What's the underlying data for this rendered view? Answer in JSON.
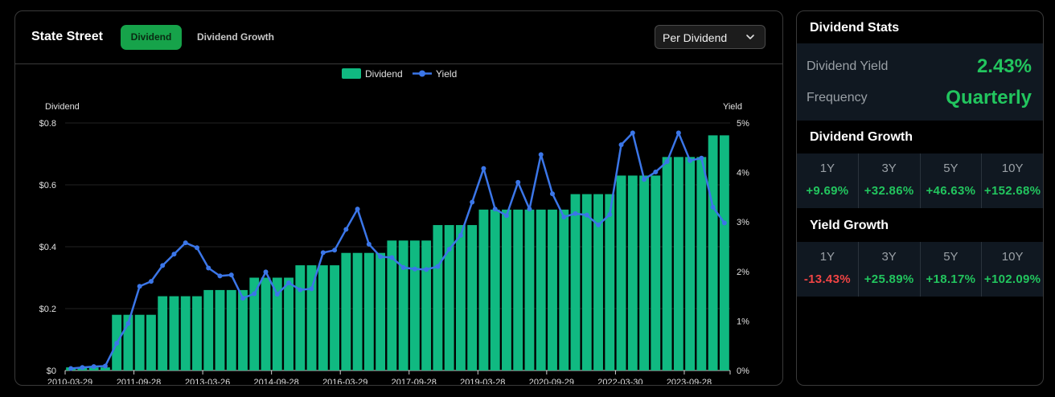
{
  "header": {
    "company": "State Street",
    "tabs": [
      {
        "label": "Dividend",
        "active": true
      },
      {
        "label": "Dividend Growth",
        "active": false
      }
    ],
    "select_value": "Per Dividend"
  },
  "colors": {
    "bar": "#10b981",
    "line": "#3b76e8",
    "positive": "#22c55e",
    "negative": "#ef4444",
    "accent_tab": "#16a34a"
  },
  "chart_data": {
    "type": "bar",
    "legend": [
      "Dividend",
      "Yield"
    ],
    "left_axis_label": "Dividend",
    "right_axis_label": "Yield",
    "left_ticks": [
      "$0",
      "$0.2",
      "$0.4",
      "$0.6",
      "$0.8"
    ],
    "right_ticks": [
      "0%",
      "1%",
      "2%",
      "3%",
      "4%",
      "5%"
    ],
    "ylim": [
      0,
      0.8
    ],
    "y2lim": [
      0,
      5
    ],
    "x_ticks": [
      "2010-03-29",
      "2011-09-28",
      "2013-03-26",
      "2014-09-28",
      "2016-03-29",
      "2017-09-28",
      "2019-03-28",
      "2020-09-29",
      "2022-03-30",
      "2023-09-28"
    ],
    "series": [
      {
        "name": "Dividend",
        "type": "bar",
        "values": [
          0.01,
          0.01,
          0.01,
          0.01,
          0.18,
          0.18,
          0.18,
          0.18,
          0.24,
          0.24,
          0.24,
          0.24,
          0.26,
          0.26,
          0.26,
          0.26,
          0.3,
          0.3,
          0.3,
          0.3,
          0.34,
          0.34,
          0.34,
          0.34,
          0.38,
          0.38,
          0.38,
          0.38,
          0.42,
          0.42,
          0.42,
          0.42,
          0.47,
          0.47,
          0.47,
          0.47,
          0.52,
          0.52,
          0.52,
          0.52,
          0.52,
          0.52,
          0.52,
          0.52,
          0.57,
          0.57,
          0.57,
          0.57,
          0.63,
          0.63,
          0.63,
          0.63,
          0.69,
          0.69,
          0.69,
          0.69,
          0.76,
          0.76
        ]
      },
      {
        "name": "Yield",
        "type": "line",
        "values": [
          0.04,
          0.06,
          0.08,
          0.09,
          0.55,
          0.95,
          1.7,
          1.8,
          2.12,
          2.35,
          2.58,
          2.48,
          2.07,
          1.91,
          1.93,
          1.46,
          1.55,
          1.99,
          1.54,
          1.77,
          1.63,
          1.65,
          2.38,
          2.43,
          2.85,
          3.26,
          2.55,
          2.3,
          2.28,
          2.08,
          2.05,
          2.04,
          2.1,
          2.45,
          2.73,
          3.4,
          4.08,
          3.26,
          3.13,
          3.8,
          3.26,
          4.36,
          3.57,
          3.1,
          3.17,
          3.14,
          2.94,
          3.15,
          4.56,
          4.8,
          3.86,
          4.01,
          4.22,
          4.8,
          4.24,
          4.29,
          3.3,
          2.98
        ]
      }
    ]
  },
  "stats": {
    "title": "Dividend Stats",
    "yield_label": "Dividend Yield",
    "yield_value": "2.43%",
    "frequency_label": "Frequency",
    "frequency_value": "Quarterly",
    "dividend_growth": {
      "title": "Dividend Growth",
      "periods": [
        "1Y",
        "3Y",
        "5Y",
        "10Y"
      ],
      "values": [
        "+9.69%",
        "+32.86%",
        "+46.63%",
        "+152.68%"
      ]
    },
    "yield_growth": {
      "title": "Yield Growth",
      "periods": [
        "1Y",
        "3Y",
        "5Y",
        "10Y"
      ],
      "values": [
        "-13.43%",
        "+25.89%",
        "+18.17%",
        "+102.09%"
      ]
    }
  }
}
